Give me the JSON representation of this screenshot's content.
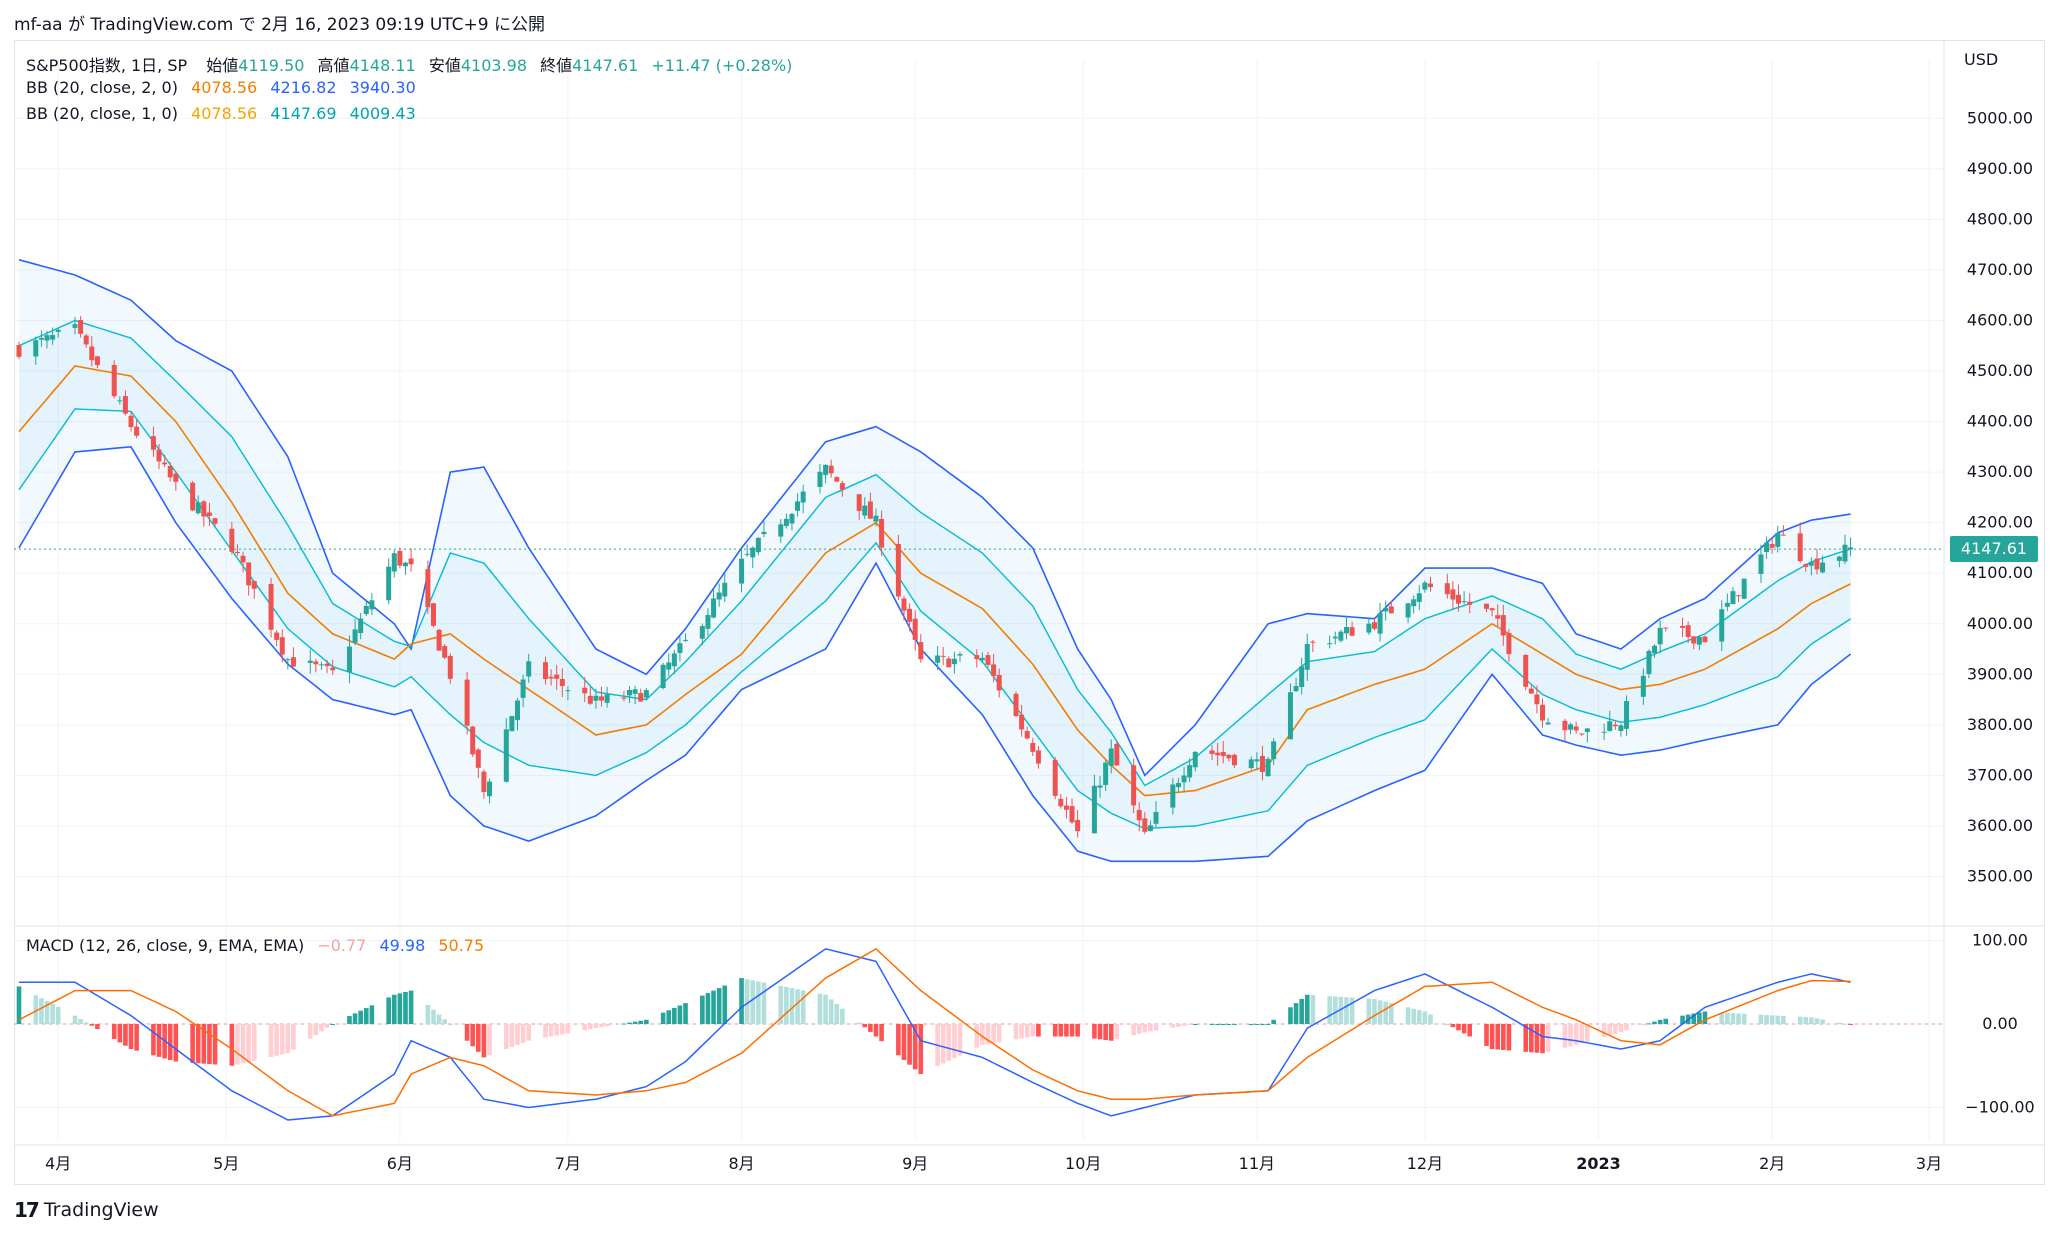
{
  "header": {
    "author": "mf-aa",
    "ga": "が",
    "site": "TradingView.com",
    "de": "で",
    "datetime": "2月 16, 2023 09:19 UTC+9",
    "ni": "に公開"
  },
  "legend": {
    "symbol": "S&P500指数, 1日, SP",
    "open_label": "始値",
    "open": "4119.50",
    "high_label": "高値",
    "high": "4148.11",
    "low_label": "安値",
    "low": "4103.98",
    "close_label": "終値",
    "close": "4147.61",
    "change": "+11.47 (+0.28%)",
    "bb2_label": "BB (20, close, 2, 0)",
    "bb2_basis": "4078.56",
    "bb2_upper": "4216.82",
    "bb2_lower": "3940.30",
    "bb1_label": "BB (20, close, 1, 0)",
    "bb1_basis": "4078.56",
    "bb1_upper": "4147.69",
    "bb1_lower": "4009.43",
    "macd_label": "MACD (12, 26, close, 9, EMA, EMA)",
    "macd_hist": "−0.77",
    "macd_line": "49.98",
    "macd_signal": "50.75"
  },
  "axis": {
    "currency": "USD",
    "last_price": "4147.61",
    "price_ticks": [
      "5000.00",
      "4900.00",
      "4800.00",
      "4700.00",
      "4600.00",
      "4500.00",
      "4400.00",
      "4300.00",
      "4200.00",
      "4100.00",
      "4000.00",
      "3900.00",
      "3800.00",
      "3700.00",
      "3600.00",
      "3500.00"
    ],
    "macd_ticks": [
      "100.00",
      "0.00",
      "−100.00"
    ],
    "time_ticks": [
      "4月",
      "5月",
      "6月",
      "7月",
      "8月",
      "9月",
      "10月",
      "11月",
      "12月",
      "2023",
      "2月",
      "3月"
    ]
  },
  "colors": {
    "up": "#26a69a",
    "down": "#ef5350",
    "bb_outer": "#2962ff",
    "bb_inner": "#00bcd4",
    "basis": "#f57c00",
    "macd_line": "#2962ff",
    "signal_line": "#ff6d00"
  },
  "footer": {
    "brand": "TradingView"
  },
  "chart_data": {
    "type": "candlestick",
    "title": "S&P500指数, 1日, SP",
    "y_range": [
      3450,
      5100
    ],
    "anchors_price": {
      "dates": [
        "2022-03-25",
        "2022-04-04",
        "2022-04-14",
        "2022-04-22",
        "2022-05-02",
        "2022-05-12",
        "2022-05-20",
        "2022-05-31",
        "2022-06-03",
        "2022-06-10",
        "2022-06-16",
        "2022-06-24",
        "2022-07-06",
        "2022-07-15",
        "2022-07-22",
        "2022-08-01",
        "2022-08-16",
        "2022-08-25",
        "2022-09-02",
        "2022-09-13",
        "2022-09-22",
        "2022-09-30",
        "2022-10-06",
        "2022-10-12",
        "2022-10-21",
        "2022-11-03",
        "2022-11-10",
        "2022-11-22",
        "2022-12-01",
        "2022-12-13",
        "2022-12-22",
        "2022-12-28",
        "2023-01-05",
        "2023-01-12",
        "2023-01-20",
        "2023-02-02",
        "2023-02-08",
        "2023-02-15"
      ],
      "close": [
        4543,
        4580,
        4392,
        4272,
        4155,
        3930,
        3901,
        4132,
        4108,
        3900,
        3667,
        3912,
        3845,
        3863,
        3962,
        4119,
        4305,
        4199,
        3924,
        3932,
        3757,
        3586,
        3745,
        3578,
        3752,
        3719,
        3956,
        4003,
        4076,
        4019,
        3822,
        3783,
        3808,
        3983,
        3973,
        4179,
        4117,
        4148
      ],
      "bb_upper": [
        4720,
        4690,
        4640,
        4560,
        4500,
        4330,
        4100,
        4000,
        3950,
        4300,
        4310,
        4150,
        3950,
        3900,
        3990,
        4150,
        4360,
        4390,
        4340,
        4250,
        4150,
        3950,
        3850,
        3700,
        3800,
        4000,
        4020,
        4010,
        4110,
        4110,
        4080,
        3980,
        3950,
        4010,
        4050,
        4180,
        4205,
        4217
      ],
      "bb_lower": [
        4150,
        4340,
        4350,
        4200,
        4050,
        3920,
        3850,
        3820,
        3830,
        3660,
        3600,
        3570,
        3620,
        3690,
        3740,
        3870,
        3950,
        4120,
        3950,
        3820,
        3660,
        3550,
        3530,
        3530,
        3530,
        3540,
        3610,
        3670,
        3710,
        3900,
        3780,
        3760,
        3740,
        3750,
        3770,
        3800,
        3880,
        3940
      ],
      "bb_basis": [
        4380,
        4510,
        4490,
        4400,
        4240,
        4060,
        3980,
        3930,
        3960,
        3980,
        3930,
        3870,
        3780,
        3800,
        3860,
        3940,
        4140,
        4200,
        4100,
        4030,
        3920,
        3790,
        3720,
        3660,
        3670,
        3720,
        3830,
        3880,
        3910,
        4000,
        3940,
        3900,
        3870,
        3880,
        3910,
        3990,
        4040,
        4079
      ]
    },
    "anchors_macd": {
      "dates": [
        "2022-03-25",
        "2022-04-04",
        "2022-04-14",
        "2022-04-22",
        "2022-05-02",
        "2022-05-12",
        "2022-05-20",
        "2022-05-31",
        "2022-06-03",
        "2022-06-10",
        "2022-06-16",
        "2022-06-24",
        "2022-07-06",
        "2022-07-15",
        "2022-07-22",
        "2022-08-01",
        "2022-08-16",
        "2022-08-25",
        "2022-09-02",
        "2022-09-13",
        "2022-09-22",
        "2022-09-30",
        "2022-10-06",
        "2022-10-12",
        "2022-10-21",
        "2022-11-03",
        "2022-11-10",
        "2022-11-22",
        "2022-12-01",
        "2022-12-13",
        "2022-12-22",
        "2022-12-28",
        "2023-01-05",
        "2023-01-12",
        "2023-01-20",
        "2023-02-02",
        "2023-02-08",
        "2023-02-15"
      ],
      "macd": [
        50,
        50,
        10,
        -30,
        -80,
        -115,
        -110,
        -60,
        -20,
        -40,
        -90,
        -100,
        -90,
        -75,
        -45,
        20,
        90,
        75,
        -20,
        -40,
        -70,
        -95,
        -110,
        -100,
        -85,
        -80,
        -5,
        40,
        60,
        20,
        -15,
        -20,
        -30,
        -20,
        20,
        50,
        60,
        50
      ],
      "signal": [
        5,
        40,
        40,
        15,
        -30,
        -80,
        -110,
        -95,
        -60,
        -40,
        -50,
        -80,
        -85,
        -80,
        -70,
        -35,
        55,
        90,
        40,
        -15,
        -55,
        -80,
        -90,
        -90,
        -85,
        -80,
        -40,
        10,
        45,
        50,
        20,
        5,
        -20,
        -25,
        5,
        40,
        52,
        51
      ]
    },
    "macd_range": [
      -130,
      105
    ]
  }
}
